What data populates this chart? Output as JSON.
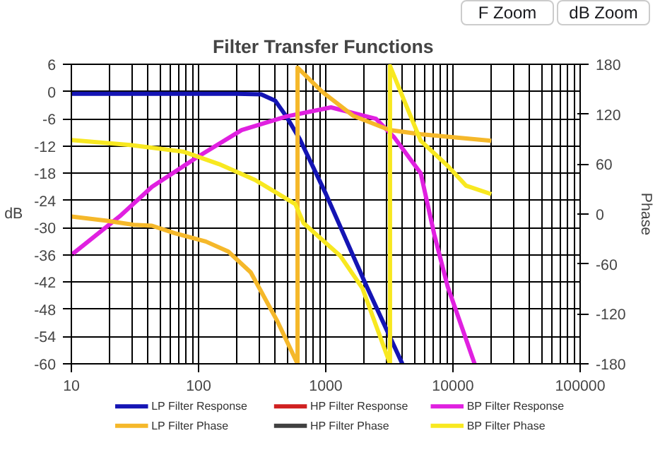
{
  "chart_data": {
    "type": "line",
    "title": "Filter Transfer  Functions",
    "ylabel": "dB",
    "y2label": "Phase",
    "annotations": [
      "F Zoom",
      "dB Zoom"
    ],
    "log": "x",
    "xlim": [
      10,
      100000
    ],
    "xticks": [
      10,
      100,
      1000,
      10000,
      100000
    ],
    "ylim": [
      -60,
      6
    ],
    "yticks": [
      -60,
      -54,
      -48,
      -42,
      -36,
      -30,
      -24,
      -18,
      -12,
      -6,
      0,
      6
    ],
    "y2lim": [
      -180,
      180
    ],
    "y2ticks": [
      -180,
      -120,
      -60,
      0,
      60,
      120,
      180
    ],
    "grid": true,
    "legend": "bottom",
    "line_style": "solid",
    "series": [
      {
        "name": "LP Filter Response",
        "color": "#1414b4",
        "x": [
          10,
          200,
          310,
          400,
          490,
          625,
          1000,
          2100,
          4000
        ],
        "values": [
          -0.5,
          -0.5,
          -0.6,
          -2,
          -5.5,
          -10.5,
          -22.5,
          -43,
          -60
        ]
      },
      {
        "name": "HP Filter Response",
        "color": "#d02020"
      },
      {
        "name": "BP Filter Response",
        "color": "#e020e0",
        "x": [
          10,
          24,
          43,
          97,
          218,
          490,
          1100,
          2480,
          3430,
          5580,
          7130,
          9090,
          14800
        ],
        "values": [
          -36,
          -27.5,
          -21,
          -14.5,
          -8.5,
          -5.5,
          -3.5,
          -6,
          -10,
          -18,
          -31.5,
          -43,
          -60
        ]
      },
      {
        "name": "LP Filter Phase",
        "color": "#f5b82a",
        "axis": "y2",
        "x": [
          10,
          19,
          31,
          43,
          65,
          114,
          171,
          257,
          417,
          600,
          600,
          936,
          1650,
          3170,
          5580,
          20000
        ],
        "values": [
          -3,
          -8,
          -13,
          -14,
          -23,
          -33,
          -45,
          -70,
          -129,
          -180,
          176,
          147,
          118,
          101,
          96,
          88
        ]
      },
      {
        "name": "HP Filter Phase",
        "color": "#404040",
        "axis": "y2"
      },
      {
        "name": "BP Filter Phase",
        "color": "#f8e820",
        "axis": "y2",
        "x": [
          10,
          29,
          76,
          145,
          278,
          576,
          670,
          1297,
          1940,
          3200,
          3200,
          5580,
          9090,
          12700,
          20000
        ],
        "values": [
          89,
          83,
          75,
          60,
          41,
          12,
          -11,
          -50,
          -89,
          -180,
          178,
          88,
          58,
          34,
          24
        ]
      }
    ]
  }
}
